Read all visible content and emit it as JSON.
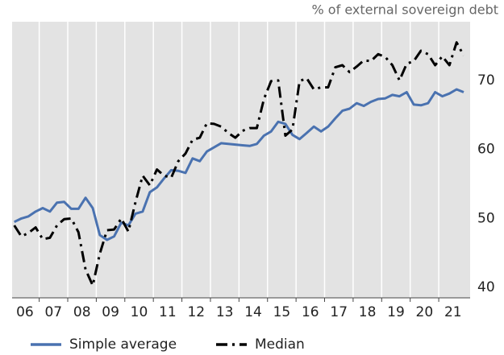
{
  "chart_data": {
    "type": "line",
    "y_axis_label": "% of external sovereign debt",
    "x": [
      2006.125,
      2006.375,
      2006.625,
      2006.875,
      2007.125,
      2007.375,
      2007.625,
      2007.875,
      2008.125,
      2008.375,
      2008.625,
      2008.875,
      2009.125,
      2009.375,
      2009.625,
      2009.875,
      2010.125,
      2010.375,
      2010.625,
      2010.875,
      2011.125,
      2011.375,
      2011.625,
      2011.875,
      2012.125,
      2012.375,
      2012.625,
      2012.875,
      2013.125,
      2013.375,
      2013.625,
      2013.875,
      2014.125,
      2014.375,
      2014.625,
      2014.875,
      2015.125,
      2015.375,
      2015.625,
      2015.875,
      2016.125,
      2016.375,
      2016.625,
      2016.875,
      2017.125,
      2017.375,
      2017.625,
      2017.875,
      2018.125,
      2018.375,
      2018.625,
      2018.875,
      2019.125,
      2019.375,
      2019.625,
      2019.875,
      2020.125,
      2020.375,
      2020.625,
      2020.875,
      2021.125,
      2021.375,
      2021.625,
      2021.875
    ],
    "series": [
      {
        "name": "Simple average",
        "color": "#4a72b0",
        "dash": "solid",
        "values": [
          49.5,
          50,
          50.3,
          51,
          51.5,
          51,
          52.3,
          52.4,
          51.4,
          51.4,
          53,
          51.5,
          47.6,
          46.9,
          47.4,
          49.4,
          49,
          50.7,
          51,
          53.8,
          54.5,
          55.8,
          57,
          56.9,
          56.6,
          58.7,
          58.3,
          59.7,
          60.3,
          60.9,
          60.8,
          60.7,
          60.6,
          60.5,
          60.8,
          62,
          62.6,
          64,
          63.7,
          62.1,
          61.5,
          62.4,
          63.3,
          62.6,
          63.3,
          64.5,
          65.6,
          65.9,
          66.7,
          66.3,
          66.9,
          67.3,
          67.4,
          67.9,
          67.7,
          68.3,
          66.5,
          66.4,
          66.7,
          68.3,
          67.7,
          68.1,
          68.7,
          68.3
        ]
      },
      {
        "name": "Median",
        "color": "#000000",
        "dash": "dashdot",
        "values": [
          49,
          47.4,
          47.9,
          48.7,
          47,
          47.2,
          49,
          49.9,
          50,
          48,
          42.6,
          40.3,
          44.9,
          48.3,
          48.4,
          50,
          48.1,
          52.4,
          56.2,
          54.8,
          57.1,
          56.2,
          55.9,
          58.3,
          59.4,
          61.4,
          61.7,
          63.8,
          63.7,
          63.3,
          62.4,
          61.7,
          62.7,
          63.1,
          63.1,
          67.3,
          69.9,
          70,
          62,
          62.9,
          69.9,
          70.3,
          68.7,
          69,
          69,
          71.9,
          72.2,
          71.2,
          72,
          72.9,
          72.8,
          73.8,
          73.4,
          72.2,
          70,
          72.4,
          72.8,
          74.3,
          73.8,
          72.2,
          73.5,
          72.2,
          75.5,
          73.6
        ]
      }
    ],
    "xlim": [
      2006.05,
      2022.1
    ],
    "xticks": [
      {
        "value": 2006.5,
        "label": "06"
      },
      {
        "value": 2007.5,
        "label": "07"
      },
      {
        "value": 2008.5,
        "label": "08"
      },
      {
        "value": 2009.5,
        "label": "09"
      },
      {
        "value": 2010.5,
        "label": "10"
      },
      {
        "value": 2011.5,
        "label": "11"
      },
      {
        "value": 2012.5,
        "label": "12"
      },
      {
        "value": 2013.5,
        "label": "13"
      },
      {
        "value": 2014.5,
        "label": "14"
      },
      {
        "value": 2015.5,
        "label": "15"
      },
      {
        "value": 2016.5,
        "label": "16"
      },
      {
        "value": 2017.5,
        "label": "17"
      },
      {
        "value": 2018.5,
        "label": "18"
      },
      {
        "value": 2019.5,
        "label": "19"
      },
      {
        "value": 2020.5,
        "label": "20"
      },
      {
        "value": 2021.5,
        "label": "21"
      }
    ],
    "x_minor_ticks": [
      2007,
      2008,
      2009,
      2010,
      2011,
      2012,
      2013,
      2014,
      2015,
      2016,
      2017,
      2018,
      2019,
      2020,
      2021
    ],
    "ylim": [
      38.5,
      78.5
    ],
    "yticks": [
      40,
      50,
      60,
      70
    ],
    "grid": true,
    "legend": "bottom"
  }
}
